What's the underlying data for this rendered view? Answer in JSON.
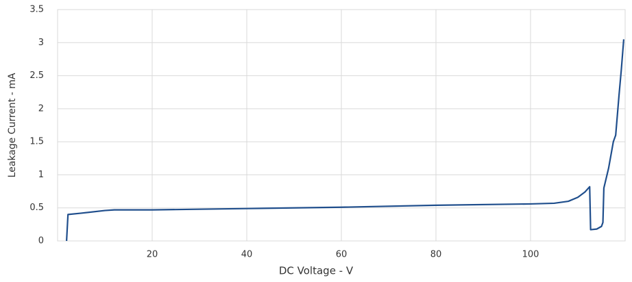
{
  "chart_data": {
    "type": "line",
    "x_label": "DC Voltage - V",
    "y_label": "Leakage Current - mA",
    "series": [
      {
        "name": "Leakage current",
        "color": "#1f4e8c",
        "x": [
          1.9,
          2.2,
          5,
          10,
          12,
          20,
          40,
          60,
          80,
          100,
          105,
          108,
          110,
          111.5,
          112.5,
          112.7,
          114,
          115,
          115.3,
          115.5,
          116.5,
          117.5,
          118,
          118.7,
          119.2,
          119.7
        ],
        "values": [
          0,
          0.4,
          0.42,
          0.46,
          0.47,
          0.47,
          0.49,
          0.51,
          0.54,
          0.56,
          0.57,
          0.6,
          0.66,
          0.74,
          0.82,
          0.17,
          0.18,
          0.22,
          0.28,
          0.8,
          1.1,
          1.5,
          1.6,
          2.2,
          2.6,
          3.05
        ]
      }
    ],
    "xlim": [
      0,
      120
    ],
    "xticks": [
      20,
      40,
      60,
      80,
      100
    ],
    "ylim": [
      0,
      3.5
    ],
    "yticks": [
      0,
      0.5,
      1,
      1.5,
      2,
      2.5,
      3,
      3.5
    ],
    "grid": true
  }
}
